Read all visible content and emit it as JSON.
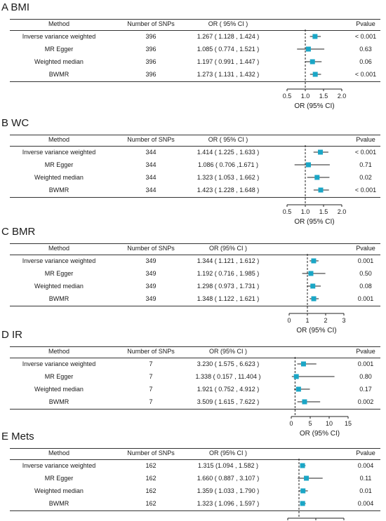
{
  "columns": {
    "method": "Method",
    "snps": "Number of SNPs",
    "pvalue": "Pvalue"
  },
  "x_axis_label": "OR (95% CI)",
  "colors": {
    "marker": "#1aa6c6",
    "line": "#222222"
  },
  "chart_data": [
    {
      "type": "forest",
      "title": "A BMI",
      "or_header": "OR ( 95% CI )",
      "xlim": [
        0.5,
        2.0
      ],
      "ticks": [
        "0.5",
        "1.0",
        "1.5",
        "2.0"
      ],
      "null_value": 1.0,
      "rows": [
        {
          "method": "Inverse variance weighted",
          "snps": "396",
          "or_text": "1.267 ( 1.128 , 1.424 )",
          "or": 1.267,
          "lo": 1.128,
          "hi": 1.424,
          "p": "< 0.001"
        },
        {
          "method": "MR Egger",
          "snps": "396",
          "or_text": "1.085 ( 0.774 , 1.521 )",
          "or": 1.085,
          "lo": 0.774,
          "hi": 1.521,
          "p": "0.63"
        },
        {
          "method": "Weighted median",
          "snps": "396",
          "or_text": "1.197 ( 0.991 , 1.447 )",
          "or": 1.197,
          "lo": 0.991,
          "hi": 1.447,
          "p": "0.06"
        },
        {
          "method": "BWMR",
          "snps": "396",
          "or_text": "1.273 ( 1.131 , 1.432 )",
          "or": 1.273,
          "lo": 1.131,
          "hi": 1.432,
          "p": "< 0.001"
        }
      ]
    },
    {
      "type": "forest",
      "title": "B WC",
      "or_header": "OR ( 95% CI )",
      "xlim": [
        0.5,
        2.0
      ],
      "ticks": [
        "0.5",
        "1.0",
        "1.5",
        "2.0"
      ],
      "null_value": 1.0,
      "rows": [
        {
          "method": "Inverse variance weighted",
          "snps": "344",
          "or_text": "1.414 ( 1.225 , 1.633 )",
          "or": 1.414,
          "lo": 1.225,
          "hi": 1.633,
          "p": "< 0.001"
        },
        {
          "method": "MR Egger",
          "snps": "344",
          "or_text": "1.086 ( 0.706 ,1.671 )",
          "or": 1.086,
          "lo": 0.706,
          "hi": 1.671,
          "p": "0.71"
        },
        {
          "method": "Weighted median",
          "snps": "344",
          "or_text": "1.323 ( 1.053 , 1.662 )",
          "or": 1.323,
          "lo": 1.053,
          "hi": 1.662,
          "p": "0.02"
        },
        {
          "method": "BWMR",
          "snps": "344",
          "or_text": "1.423 ( 1.228 , 1.648 )",
          "or": 1.423,
          "lo": 1.228,
          "hi": 1.648,
          "p": "< 0.001"
        }
      ]
    },
    {
      "type": "forest",
      "title": "C BMR",
      "or_header": "OR (95% CI )",
      "xlim": [
        0,
        3
      ],
      "ticks": [
        "0",
        "1",
        "2",
        "3"
      ],
      "null_value": 1.0,
      "rows": [
        {
          "method": "Inverse variance weighted",
          "snps": "349",
          "or_text": "1.344 ( 1.121 , 1.612 )",
          "or": 1.344,
          "lo": 1.121,
          "hi": 1.612,
          "p": "0.001"
        },
        {
          "method": "MR Egger",
          "snps": "349",
          "or_text": "1.192 ( 0.716 , 1.985 )",
          "or": 1.192,
          "lo": 0.716,
          "hi": 1.985,
          "p": "0.50"
        },
        {
          "method": "Weighted median",
          "snps": "349",
          "or_text": "1.298 ( 0.973 , 1.731 )",
          "or": 1.298,
          "lo": 0.973,
          "hi": 1.731,
          "p": "0.08"
        },
        {
          "method": "BWMR",
          "snps": "349",
          "or_text": "1.348 ( 1.122 , 1.621 )",
          "or": 1.348,
          "lo": 1.122,
          "hi": 1.621,
          "p": "0.001"
        }
      ]
    },
    {
      "type": "forest",
      "title": "D IR",
      "or_header": "OR (95% CI )",
      "xlim": [
        0,
        15
      ],
      "ticks": [
        "0",
        "5",
        "10",
        "15"
      ],
      "null_value": 1.0,
      "rows": [
        {
          "method": "Inverse variance weighted",
          "snps": "7",
          "or_text": "3.230 ( 1.575 , 6.623 )",
          "or": 3.23,
          "lo": 1.575,
          "hi": 6.623,
          "p": "0.001"
        },
        {
          "method": "MR Egger",
          "snps": "7",
          "or_text": "1.338 ( 0.157 , 11.404 )",
          "or": 1.338,
          "lo": 0.157,
          "hi": 11.404,
          "p": "0.80"
        },
        {
          "method": "Weighted median",
          "snps": "7",
          "or_text": "1.921 ( 0.752 , 4.912 )",
          "or": 1.921,
          "lo": 0.752,
          "hi": 4.912,
          "p": "0.17"
        },
        {
          "method": "BWMR",
          "snps": "7",
          "or_text": "3.509 ( 1.615 , 7.622 )",
          "or": 3.509,
          "lo": 1.615,
          "hi": 7.622,
          "p": "0.002"
        }
      ]
    },
    {
      "type": "forest",
      "title": "E Mets",
      "or_header": "OR (95% CI )",
      "xlim": [
        0.0,
        5.0
      ],
      "ticks": [
        "0.0",
        "2.5",
        "5.0"
      ],
      "null_value": 1.0,
      "rows": [
        {
          "method": "Inverse variance weighted",
          "snps": "162",
          "or_text": "1.315 (1.094 , 1.582 )",
          "or": 1.315,
          "lo": 1.094,
          "hi": 1.582,
          "p": "0.004"
        },
        {
          "method": "MR Egger",
          "snps": "162",
          "or_text": "1.660 ( 0.887 , 3.107 )",
          "or": 1.66,
          "lo": 0.887,
          "hi": 3.107,
          "p": "0.11"
        },
        {
          "method": "Weighted median",
          "snps": "162",
          "or_text": "1.359 ( 1.033 , 1.790 )",
          "or": 1.359,
          "lo": 1.033,
          "hi": 1.79,
          "p": "0.01"
        },
        {
          "method": "BWMR",
          "snps": "162",
          "or_text": "1.323 ( 1.096 , 1.597 )",
          "or": 1.323,
          "lo": 1.096,
          "hi": 1.597,
          "p": "0.004"
        }
      ]
    }
  ]
}
